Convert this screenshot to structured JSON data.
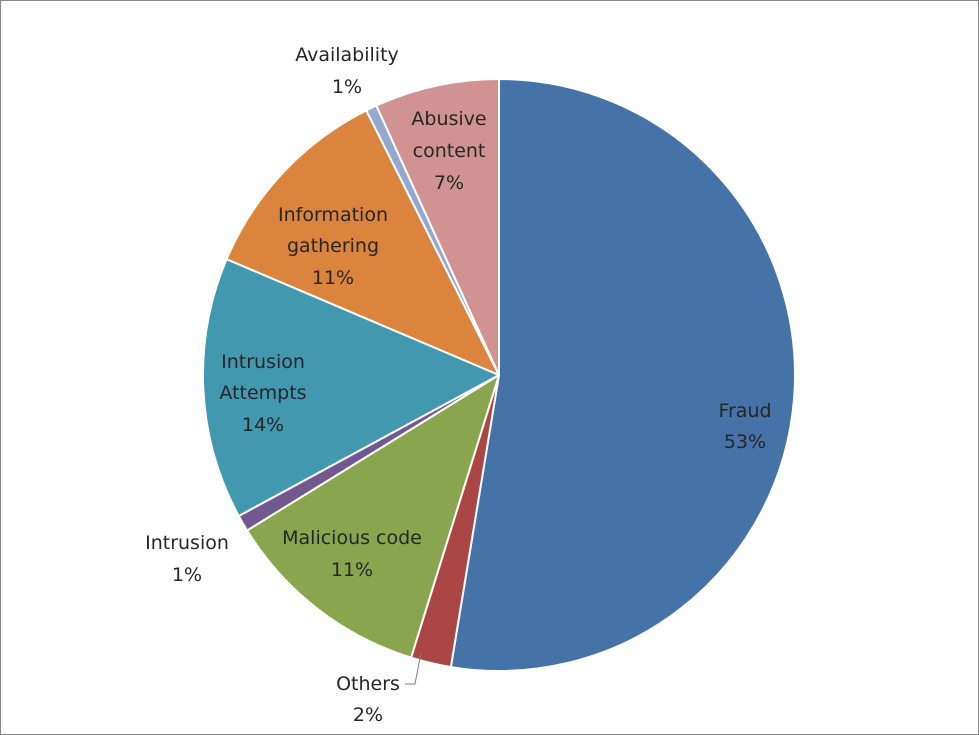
{
  "chart_data": {
    "type": "pie",
    "title": "",
    "start_angle_deg": 0,
    "direction": "clockwise",
    "legend": "none",
    "slices": [
      {
        "label_lines": [
          "Fraud"
        ],
        "pct_label": "53%",
        "value": 52.6,
        "color": "#4572A7"
      },
      {
        "label_lines": [
          "Others"
        ],
        "pct_label": "2%",
        "value": 2.2,
        "color": "#AA4643"
      },
      {
        "label_lines": [
          "Malicious code"
        ],
        "pct_label": "11%",
        "value": 11.4,
        "color": "#89A54E"
      },
      {
        "label_lines": [
          "Intrusion"
        ],
        "pct_label": "1%",
        "value": 0.9,
        "color": "#71588F"
      },
      {
        "label_lines": [
          "Intrusion",
          "Attempts"
        ],
        "pct_label": "14%",
        "value": 14.3,
        "color": "#4198AF"
      },
      {
        "label_lines": [
          "Information",
          "gathering"
        ],
        "pct_label": "11%",
        "value": 11.2,
        "color": "#DB843D"
      },
      {
        "label_lines": [
          "Availability"
        ],
        "pct_label": "1%",
        "value": 0.6,
        "color": "#93A9CF"
      },
      {
        "label_lines": [
          "Abusive",
          "content"
        ],
        "pct_label": "7%",
        "value": 6.8,
        "color": "#D19392"
      }
    ]
  }
}
